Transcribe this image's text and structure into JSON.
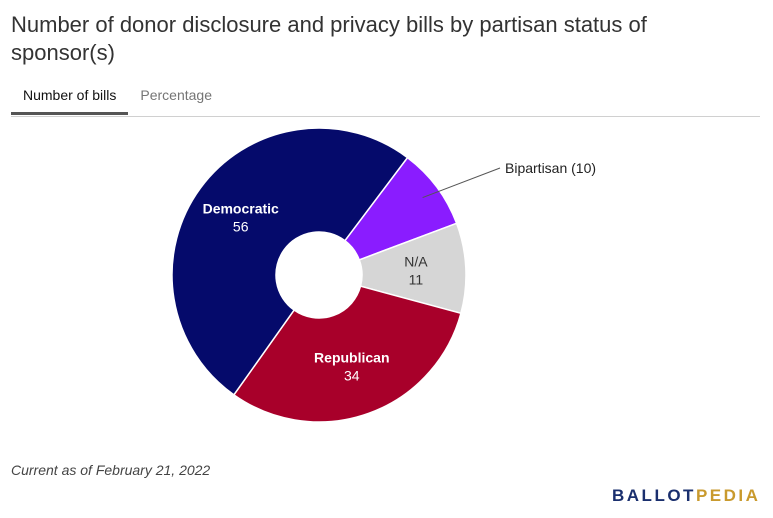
{
  "title": "Number of donor disclosure and privacy bills by partisan status of sponsor(s)",
  "tabs": [
    {
      "label": "Number of bills",
      "active": true
    },
    {
      "label": "Percentage",
      "active": false
    }
  ],
  "footnote": "Current as of February 21, 2022",
  "logo": {
    "part1": "BALLOT",
    "part2": "PEDIA"
  },
  "chart_data": {
    "type": "pie",
    "donut": true,
    "slices": [
      {
        "name": "Bipartisan",
        "value": 10,
        "color": "#8a1cff",
        "label": "Bipartisan (10)",
        "label_placement": "outside"
      },
      {
        "name": "N/A",
        "value": 11,
        "color": "#d6d6d6",
        "label": "N/A",
        "label_placement": "inside"
      },
      {
        "name": "Republican",
        "value": 34,
        "color": "#a8002a",
        "label": "Republican",
        "label_placement": "inside"
      },
      {
        "name": "Democratic",
        "value": 56,
        "color": "#050a6b",
        "label": "Democratic",
        "label_placement": "inside"
      }
    ]
  }
}
